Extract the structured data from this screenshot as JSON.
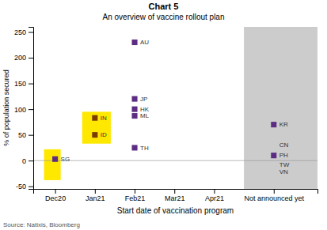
{
  "chart_data": {
    "type": "scatter",
    "title": "Chart 5",
    "subtitle": "An overview of vaccine rollout plan",
    "x_label": "Start date of vaccination program",
    "y_label": "% of population secured",
    "source": "Source: Natixis, Bloomberg",
    "labels": [
      "SG",
      "IN",
      "ID",
      "AU",
      "JP",
      "HK",
      "ML",
      "TH",
      "KR",
      "CN",
      "PH",
      "TW",
      "VN"
    ],
    "x": [
      0,
      1,
      1,
      2,
      2,
      2,
      2,
      2,
      5.5,
      5.5,
      5.5,
      5.5,
      5.5
    ],
    "values": [
      3,
      83,
      50,
      230,
      120,
      100,
      87,
      25,
      70,
      30,
      10,
      -8,
      -22
    ],
    "colors": [
      "#5C2D82",
      "#7B3B00",
      "#7B3B00",
      "#5C2D82",
      "#5C2D82",
      "#5C2D82",
      "#5C2D82",
      "#5C2D82",
      "#5C2D82",
      null,
      "#5C2D82",
      null,
      null
    ],
    "marker": "square",
    "xlim": [
      -0.55,
      6.6
    ],
    "xticks": [
      {
        "value": 0,
        "label": "Dec20"
      },
      {
        "value": 1,
        "label": "Jan21"
      },
      {
        "value": 2,
        "label": "Feb21"
      },
      {
        "value": 3,
        "label": "Mar21"
      },
      {
        "value": 4,
        "label": "Apr21"
      },
      {
        "value": 5.5,
        "label": "Not announced yet"
      }
    ],
    "ylim": [
      -55,
      260
    ],
    "yticks": [
      -50,
      0,
      50,
      100,
      150,
      200,
      250
    ],
    "reference_y": [
      0
    ],
    "regions": [
      {
        "x_from": 4.75,
        "color": "#CCCCCC"
      }
    ],
    "highlights": [
      {
        "x": -0.28,
        "y": -38,
        "width": 0.42,
        "height": 60,
        "color": "#FFE800"
      },
      {
        "x": 0.68,
        "y": 33,
        "width": 0.72,
        "height": 62,
        "color": "#FFE800"
      }
    ],
    "grid": false
  }
}
